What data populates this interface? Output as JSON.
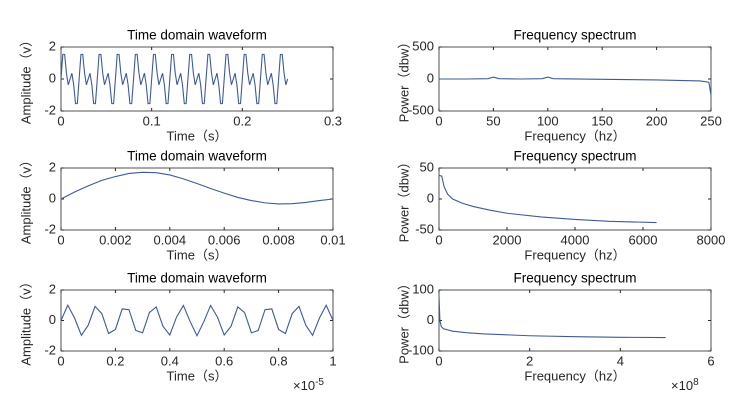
{
  "chart_data": [
    {
      "type": "line",
      "title": "Time domain waveform",
      "x_label": "Time（s）",
      "y_label": "Amplitude（v）",
      "color": "#3d5a99",
      "x": [
        0,
        0.002,
        0.004,
        0.006,
        0.008,
        0.01,
        0.012,
        0.014,
        0.016,
        0.018,
        0.02,
        0.022,
        0.024,
        0.026,
        0.028,
        0.03,
        0.032,
        0.034,
        0.036,
        0.038,
        0.04,
        0.042,
        0.044,
        0.046,
        0.048,
        0.05,
        0.052,
        0.054,
        0.056,
        0.058,
        0.06,
        0.062,
        0.064,
        0.066,
        0.068,
        0.07,
        0.072,
        0.074,
        0.076,
        0.078,
        0.08,
        0.082,
        0.084,
        0.086,
        0.088,
        0.09,
        0.092,
        0.094,
        0.096,
        0.098,
        0.1,
        0.102,
        0.104,
        0.106,
        0.108,
        0.11,
        0.112,
        0.114,
        0.116,
        0.118,
        0.12,
        0.122,
        0.124,
        0.126,
        0.128,
        0.13,
        0.132,
        0.134,
        0.136,
        0.138,
        0.14,
        0.142,
        0.144,
        0.146,
        0.148,
        0.15,
        0.152,
        0.154,
        0.156,
        0.158,
        0.16,
        0.162,
        0.164,
        0.166,
        0.168,
        0.17,
        0.172,
        0.174,
        0.176,
        0.178,
        0.18,
        0.182,
        0.184,
        0.186,
        0.188,
        0.19,
        0.192,
        0.194,
        0.196,
        0.198,
        0.2,
        0.202,
        0.204,
        0.206,
        0.208,
        0.21,
        0.212,
        0.214,
        0.216,
        0.218,
        0.22,
        0.222,
        0.224,
        0.226,
        0.228,
        0.23,
        0.232,
        0.234,
        0.236,
        0.238,
        0.24,
        0.242,
        0.244,
        0.246,
        0.248,
        0.25
      ],
      "values": [
        0,
        1.539,
        1.539,
        0.363,
        -0.363,
        0,
        0.363,
        -0.363,
        -1.539,
        -1.539,
        0,
        1.539,
        1.539,
        0.363,
        -0.363,
        0,
        0.363,
        -0.363,
        -1.539,
        -1.539,
        0,
        1.539,
        1.539,
        0.363,
        -0.363,
        0,
        0.363,
        -0.363,
        -1.539,
        -1.539,
        0,
        1.539,
        1.539,
        0.363,
        -0.363,
        0,
        0.363,
        -0.363,
        -1.539,
        -1.539,
        0,
        1.539,
        1.539,
        0.363,
        -0.363,
        0,
        0.363,
        -0.363,
        -1.539,
        -1.539,
        0,
        1.539,
        1.539,
        0.363,
        -0.363,
        0,
        0.363,
        -0.363,
        -1.539,
        -1.539,
        0,
        1.539,
        1.539,
        0.363,
        -0.363,
        0,
        0.363,
        -0.363,
        -1.539,
        -1.539,
        0,
        1.539,
        1.539,
        0.363,
        -0.363,
        0,
        0.363,
        -0.363,
        -1.539,
        -1.539,
        0,
        1.539,
        1.539,
        0.363,
        -0.363,
        0,
        0.363,
        -0.363,
        -1.539,
        -1.539,
        0,
        1.539,
        1.539,
        0.363,
        -0.363,
        0,
        0.363,
        -0.363,
        -1.539,
        -1.539,
        0,
        1.539,
        1.539,
        0.363,
        -0.363,
        0,
        0.363,
        -0.363,
        -1.539,
        -1.539,
        0,
        1.539,
        1.539,
        0.363,
        -0.363,
        0,
        0.363,
        -0.363,
        -1.539,
        -1.539,
        0,
        1.539,
        1.539,
        0.363,
        -0.363,
        0
      ],
      "xlim": [
        0,
        0.3
      ],
      "xticks": [
        0,
        0.1,
        0.2,
        0.3
      ],
      "ylim": [
        -2,
        2
      ],
      "yticks": [
        -2,
        0,
        2
      ]
    },
    {
      "type": "line",
      "title": "Frequency spectrum",
      "x_label": "Frequency（hz）",
      "y_label": "Power（dbw）",
      "color": "#3d5a99",
      "x": [
        0,
        25,
        45,
        50,
        55,
        75,
        95,
        100,
        105,
        150,
        200,
        240,
        248,
        250
      ],
      "values": [
        0,
        0,
        5,
        30,
        5,
        0,
        5,
        30,
        5,
        -5,
        -15,
        -30,
        -50,
        -250
      ],
      "xlim": [
        0,
        250
      ],
      "xticks": [
        0,
        50,
        100,
        150,
        200,
        250
      ],
      "ylim": [
        -500,
        500
      ],
      "yticks": [
        -500,
        0,
        500
      ]
    },
    {
      "type": "line",
      "title": "Time domain waveform",
      "x_label": "Time（s）",
      "y_label": "Amplitude（v）",
      "color": "#3d5a99",
      "x": [
        0,
        0.0005,
        0.001,
        0.0015,
        0.002,
        0.0025,
        0.003,
        0.0035,
        0.004,
        0.0045,
        0.005,
        0.0055,
        0.006,
        0.0065,
        0.007,
        0.0075,
        0.008,
        0.0085,
        0.009,
        0.0095,
        0.01
      ],
      "values": [
        0,
        0.45,
        0.85,
        1.2,
        1.45,
        1.65,
        1.72,
        1.7,
        1.55,
        1.3,
        1.0,
        0.68,
        0.38,
        0.1,
        -0.1,
        -0.25,
        -0.32,
        -0.3,
        -0.22,
        -0.1,
        0
      ],
      "xlim": [
        0,
        0.01
      ],
      "xticks": [
        0,
        0.002,
        0.004,
        0.006,
        0.008,
        0.01
      ],
      "ylim": [
        -2,
        2
      ],
      "yticks": [
        -2,
        0,
        2
      ]
    },
    {
      "type": "line",
      "title": "Frequency spectrum",
      "x_label": "Frequency（hz）",
      "y_label": "Power（dbw）",
      "color": "#3d5a99",
      "x": [
        0,
        80,
        150,
        250,
        400,
        700,
        1000,
        1500,
        2000,
        3000,
        4000,
        5000,
        6400
      ],
      "values": [
        38,
        37,
        20,
        8,
        0,
        -7,
        -12,
        -18,
        -23,
        -29,
        -33,
        -36,
        -38
      ],
      "xlim": [
        0,
        8000
      ],
      "xticks": [
        0,
        2000,
        4000,
        6000,
        8000
      ],
      "ylim": [
        -50,
        50
      ],
      "yticks": [
        -50,
        0,
        50
      ]
    },
    {
      "type": "line",
      "title": "Time domain waveform",
      "x_label": "Time（s）",
      "y_label": "Amplitude（v）",
      "color": "#3d5a99",
      "x_multiplier": {
        "base": "×10",
        "exponent": "-5"
      },
      "x": [
        0,
        0.025,
        0.05,
        0.075,
        0.1,
        0.125,
        0.15,
        0.175,
        0.2,
        0.225,
        0.25,
        0.275,
        0.3,
        0.325,
        0.35,
        0.375,
        0.4,
        0.425,
        0.45,
        0.475,
        0.5,
        0.525,
        0.55,
        0.575,
        0.6,
        0.625,
        0.65,
        0.675,
        0.7,
        0.725,
        0.75,
        0.775,
        0.8,
        0.825,
        0.85,
        0.875,
        0.9,
        0.925,
        0.95,
        0.975,
        1
      ],
      "values": [
        0,
        0.997,
        0.156,
        -0.972,
        -0.309,
        0.924,
        0.454,
        -0.853,
        -0.588,
        0.76,
        0.707,
        -0.649,
        -0.809,
        0.522,
        0.891,
        -0.383,
        -0.951,
        0.233,
        0.988,
        -0.078,
        -1,
        -0.078,
        0.988,
        0.233,
        -0.951,
        -0.383,
        0.891,
        0.522,
        -0.809,
        -0.649,
        0.707,
        0.76,
        -0.588,
        -0.853,
        0.454,
        0.924,
        -0.309,
        -0.972,
        0.156,
        0.997,
        0
      ],
      "xlim": [
        0,
        1
      ],
      "xticks": [
        0,
        0.2,
        0.4,
        0.6,
        0.8,
        1
      ],
      "ylim": [
        -2,
        2
      ],
      "yticks": [
        -2,
        0,
        2
      ]
    },
    {
      "type": "line",
      "title": "Frequency spectrum",
      "x_label": "Frequency（hz）",
      "y_label": "Power（dbw）",
      "color": "#3d5a99",
      "x_multiplier": {
        "base": "×10",
        "exponent": "8"
      },
      "x": [
        0,
        0.02,
        0.05,
        0.1,
        0.3,
        0.6,
        1,
        1.5,
        2,
        3,
        4,
        5
      ],
      "values": [
        80,
        0,
        -20,
        -27,
        -35,
        -40,
        -44,
        -47,
        -50,
        -53,
        -55,
        -56
      ],
      "xlim": [
        0,
        6
      ],
      "xticks": [
        0,
        2,
        4,
        6
      ],
      "ylim": [
        -100,
        100
      ],
      "yticks": [
        -100,
        0,
        100
      ]
    }
  ]
}
